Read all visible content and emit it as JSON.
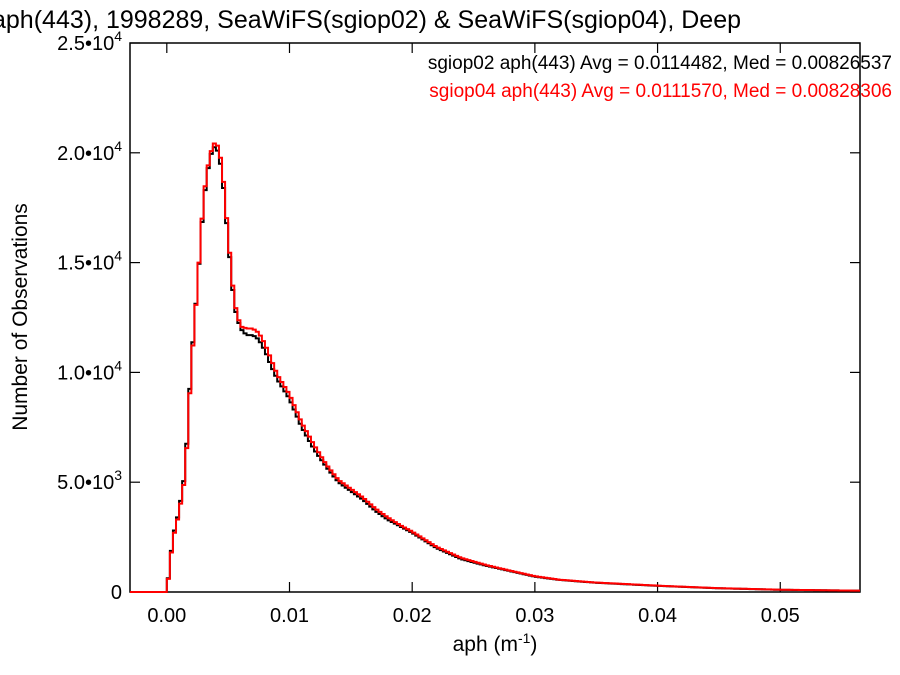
{
  "chart_data": {
    "type": "line",
    "title": "aph(443), 1998289, SeaWiFS(sgiop02) & SeaWiFS(sgiop04), Deep",
    "xlabel": "aph (m",
    "xlabel_sup": "-1",
    "xlabel_close": ")",
    "ylabel": "Number of Observations",
    "xlim": [
      -0.003,
      0.0565
    ],
    "ylim": [
      0,
      25000
    ],
    "x_ticks": [
      {
        "value": 0.0,
        "label": "0.00"
      },
      {
        "value": 0.01,
        "label": "0.01"
      },
      {
        "value": 0.02,
        "label": "0.02"
      },
      {
        "value": 0.03,
        "label": "0.03"
      },
      {
        "value": 0.04,
        "label": "0.04"
      },
      {
        "value": 0.05,
        "label": "0.05"
      }
    ],
    "y_ticks": [
      {
        "value": 0,
        "mant": "0",
        "exp": ""
      },
      {
        "value": 5000,
        "mant": "5.0•10",
        "exp": "3"
      },
      {
        "value": 10000,
        "mant": "1.0•10",
        "exp": "4"
      },
      {
        "value": 15000,
        "mant": "1.5•10",
        "exp": "4"
      },
      {
        "value": 20000,
        "mant": "2.0•10",
        "exp": "4"
      },
      {
        "value": 25000,
        "mant": "2.5•10",
        "exp": "4"
      }
    ],
    "x": [
      -0.003,
      0.0,
      0.0005,
      0.001,
      0.0015,
      0.002,
      0.0025,
      0.003,
      0.0035,
      0.004,
      0.0045,
      0.005,
      0.0055,
      0.006,
      0.0065,
      0.007,
      0.0075,
      0.008,
      0.0085,
      0.009,
      0.01,
      0.011,
      0.012,
      0.013,
      0.014,
      0.015,
      0.016,
      0.017,
      0.018,
      0.019,
      0.02,
      0.022,
      0.024,
      0.026,
      0.028,
      0.03,
      0.032,
      0.035,
      0.04,
      0.045,
      0.05,
      0.0565
    ],
    "series": [
      {
        "name": "sgiop02 aph(443) Avg = 0.0114482, Med = 0.00826537",
        "color": "#000000",
        "values": [
          0,
          0,
          2500,
          3700,
          5500,
          10500,
          14000,
          17800,
          19800,
          20400,
          19200,
          16000,
          13000,
          12000,
          11700,
          11700,
          11500,
          11000,
          10300,
          9700,
          8800,
          7500,
          6500,
          5700,
          5000,
          4600,
          4200,
          3700,
          3300,
          3000,
          2700,
          2000,
          1500,
          1200,
          950,
          700,
          550,
          420,
          280,
          170,
          100,
          60
        ]
      },
      {
        "name": "sgiop04 aph(443) Avg = 0.0111570, Med = 0.00828306",
        "color": "#ff0000",
        "values": [
          0,
          0,
          2400,
          3600,
          5300,
          10300,
          14000,
          18000,
          19900,
          20600,
          19500,
          16200,
          13200,
          12100,
          12000,
          12000,
          11800,
          11300,
          10600,
          9900,
          9000,
          7700,
          6700,
          5800,
          5100,
          4700,
          4300,
          3800,
          3400,
          3050,
          2750,
          2050,
          1550,
          1230,
          970,
          720,
          560,
          430,
          290,
          175,
          105,
          60
        ]
      }
    ],
    "legend_position": "top-right"
  }
}
